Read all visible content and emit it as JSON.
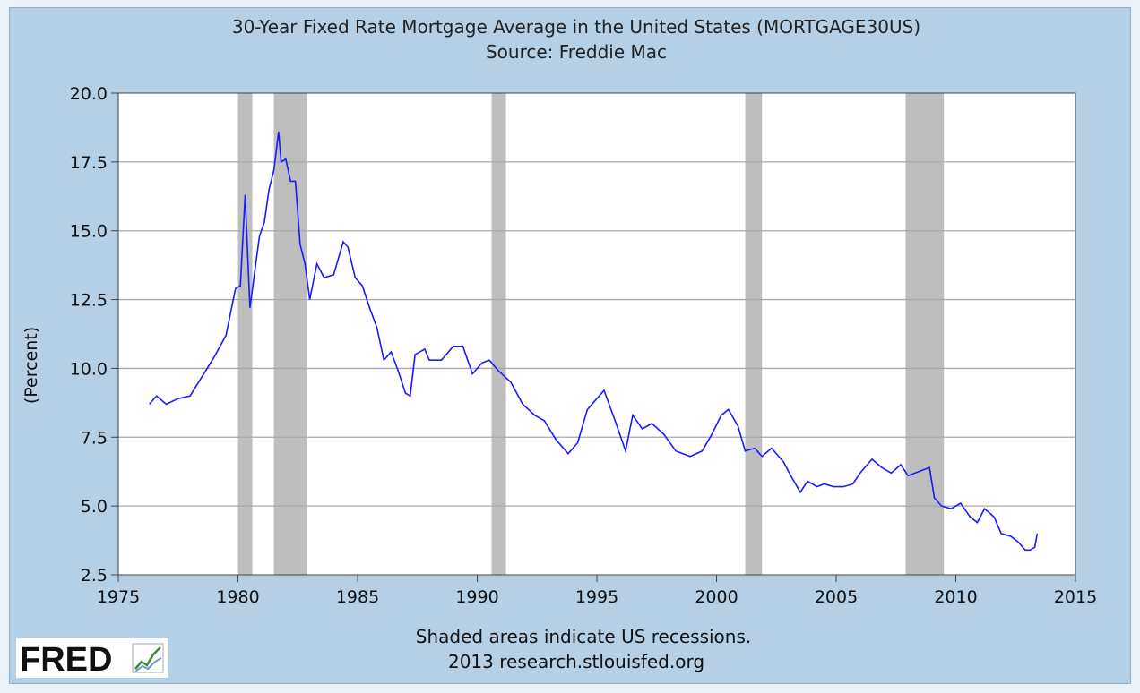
{
  "title": "30-Year Fixed Rate Mortgage Average in the United States (MORTGAGE30US)",
  "subtitle": "Source: Freddie Mac",
  "footnote": "Shaded areas indicate US recessions.",
  "copyright": "2013 research.stlouisfed.org",
  "logo": {
    "text": "FRED",
    "icon": "fred-chart-icon"
  },
  "colors": {
    "line": "#1a1aff",
    "recession": "#bebebe",
    "grid": "#a8a8a8",
    "panel": "#b5cfe4",
    "plot": "#ffffff"
  },
  "chart_data": {
    "type": "line",
    "title": "30-Year Fixed Rate Mortgage Average in the United States (MORTGAGE30US)",
    "subtitle": "Source: Freddie Mac",
    "xlabel": "",
    "ylabel": "(Percent)",
    "xlim": [
      1975,
      2015
    ],
    "ylim": [
      2.5,
      20.0
    ],
    "xticks": [
      "1975",
      "1980",
      "1985",
      "1990",
      "1995",
      "2000",
      "2005",
      "2010",
      "2015"
    ],
    "yticks": [
      "2.5",
      "5.0",
      "7.5",
      "10.0",
      "12.5",
      "15.0",
      "17.5",
      "20.0"
    ],
    "grid": true,
    "recessions": [
      [
        1980.0,
        1980.6
      ],
      [
        1981.5,
        1982.9
      ],
      [
        1990.6,
        1991.2
      ],
      [
        2001.2,
        2001.9
      ],
      [
        2007.9,
        2009.5
      ]
    ],
    "series": [
      {
        "name": "MORTGAGE30US",
        "x": [
          1976.3,
          1976.6,
          1977.0,
          1977.5,
          1978.0,
          1978.5,
          1979.0,
          1979.5,
          1979.9,
          1980.1,
          1980.3,
          1980.5,
          1980.7,
          1980.9,
          1981.1,
          1981.3,
          1981.5,
          1981.7,
          1981.8,
          1982.0,
          1982.2,
          1982.4,
          1982.6,
          1982.8,
          1983.0,
          1983.3,
          1983.6,
          1984.0,
          1984.4,
          1984.6,
          1984.9,
          1985.2,
          1985.5,
          1985.8,
          1986.1,
          1986.4,
          1986.7,
          1987.0,
          1987.2,
          1987.4,
          1987.8,
          1988.0,
          1988.5,
          1989.0,
          1989.4,
          1989.8,
          1990.2,
          1990.5,
          1990.9,
          1991.4,
          1991.9,
          1992.4,
          1992.8,
          1993.3,
          1993.8,
          1994.2,
          1994.6,
          1994.9,
          1995.3,
          1995.8,
          1996.2,
          1996.5,
          1996.9,
          1997.3,
          1997.8,
          1998.3,
          1998.9,
          1999.4,
          1999.8,
          2000.2,
          2000.5,
          2000.9,
          2001.2,
          2001.6,
          2001.9,
          2002.3,
          2002.8,
          2003.1,
          2003.5,
          2003.8,
          2004.2,
          2004.5,
          2004.9,
          2005.3,
          2005.7,
          2006.0,
          2006.5,
          2006.9,
          2007.3,
          2007.7,
          2008.0,
          2008.3,
          2008.6,
          2008.9,
          2009.1,
          2009.4,
          2009.8,
          2010.2,
          2010.6,
          2010.9,
          2011.2,
          2011.6,
          2011.9,
          2012.3,
          2012.6,
          2012.9,
          2013.1,
          2013.3,
          2013.4
        ],
        "values": [
          8.7,
          9.0,
          8.7,
          8.9,
          9.0,
          9.7,
          10.4,
          11.2,
          12.9,
          13.0,
          16.3,
          12.2,
          13.5,
          14.8,
          15.3,
          16.5,
          17.2,
          18.6,
          17.5,
          17.6,
          16.8,
          16.8,
          14.5,
          13.8,
          12.5,
          13.8,
          13.3,
          13.4,
          14.6,
          14.4,
          13.3,
          13.0,
          12.2,
          11.5,
          10.3,
          10.6,
          9.9,
          9.1,
          9.0,
          10.5,
          10.7,
          10.3,
          10.3,
          10.8,
          10.8,
          9.8,
          10.2,
          10.3,
          9.9,
          9.5,
          8.7,
          8.3,
          8.1,
          7.4,
          6.9,
          7.3,
          8.5,
          8.8,
          9.2,
          8.0,
          7.0,
          8.3,
          7.8,
          8.0,
          7.6,
          7.0,
          6.8,
          7.0,
          7.6,
          8.3,
          8.5,
          7.9,
          7.0,
          7.1,
          6.8,
          7.1,
          6.6,
          6.1,
          5.5,
          5.9,
          5.7,
          5.8,
          5.7,
          5.7,
          5.8,
          6.2,
          6.7,
          6.4,
          6.2,
          6.5,
          6.1,
          6.2,
          6.3,
          6.4,
          5.3,
          5.0,
          4.9,
          5.1,
          4.6,
          4.4,
          4.9,
          4.6,
          4.0,
          3.9,
          3.7,
          3.4,
          3.4,
          3.5,
          4.0
        ]
      }
    ]
  }
}
